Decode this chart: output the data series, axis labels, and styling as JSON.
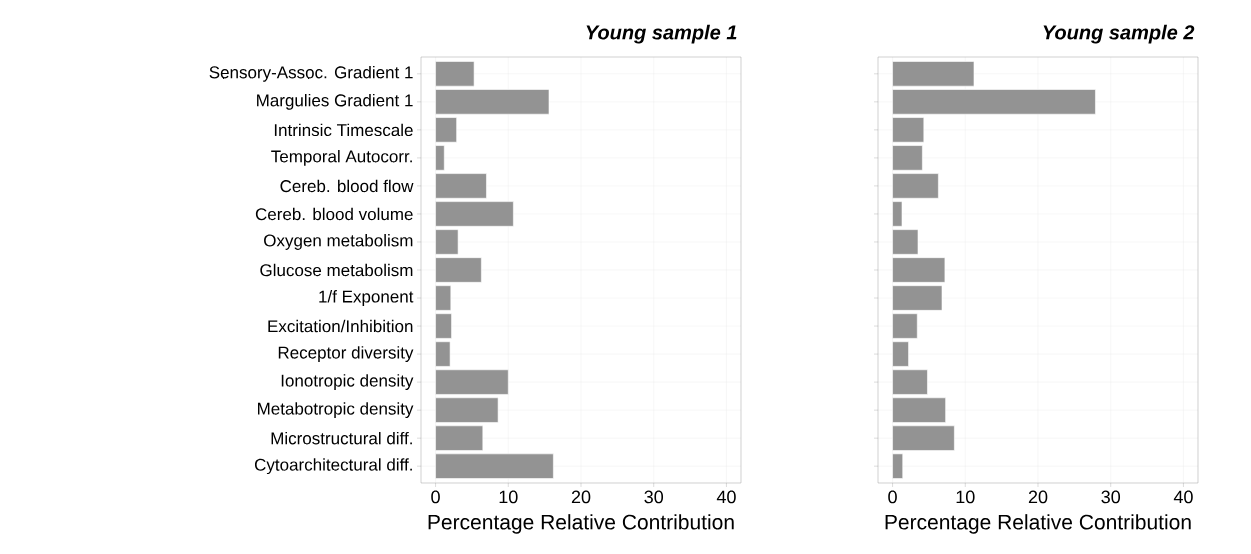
{
  "chart_data": [
    {
      "type": "bar",
      "title": "Young sample 1",
      "xlabel": "Percentage Relative Contribution",
      "orientation": "horizontal",
      "categories": [
        "Sensory-Assoc. Gradient 1",
        "Margulies Gradient 1",
        "Intrinsic Timescale",
        "Temporal Autocorr.",
        "Cereb. blood flow",
        "Cereb. blood volume",
        "Oxygen metabolism",
        "Glucose metabolism",
        "1/f Exponent",
        "Excitation/Inhibition",
        "Receptor diversity",
        "Ionotropic density",
        "Metabotropic density",
        "Microstructural diff.",
        "Cytoarchitectural diff."
      ],
      "values": [
        5.3,
        15.6,
        2.9,
        1.2,
        7.0,
        10.7,
        3.1,
        6.3,
        2.1,
        2.2,
        2.0,
        10.0,
        8.6,
        6.5,
        16.2
      ],
      "color": "#939393",
      "xlim": [
        -2,
        42
      ],
      "xticks": [
        0,
        10,
        20,
        30,
        40
      ],
      "grid": true
    },
    {
      "type": "bar",
      "title": "Young sample 2",
      "xlabel": "Percentage Relative Contribution",
      "orientation": "horizontal",
      "categories": [
        null,
        null,
        null,
        null,
        null,
        null,
        null,
        null,
        null,
        null,
        null,
        null,
        null,
        null,
        null
      ],
      "values": [
        11.2,
        27.9,
        4.3,
        4.1,
        6.3,
        1.3,
        3.5,
        7.2,
        6.8,
        3.4,
        2.2,
        4.8,
        7.3,
        8.5,
        1.4
      ],
      "color": "#939393",
      "xlim": [
        -2,
        42
      ],
      "xticks": [
        0,
        10,
        20,
        30,
        40
      ],
      "grid": true
    }
  ]
}
